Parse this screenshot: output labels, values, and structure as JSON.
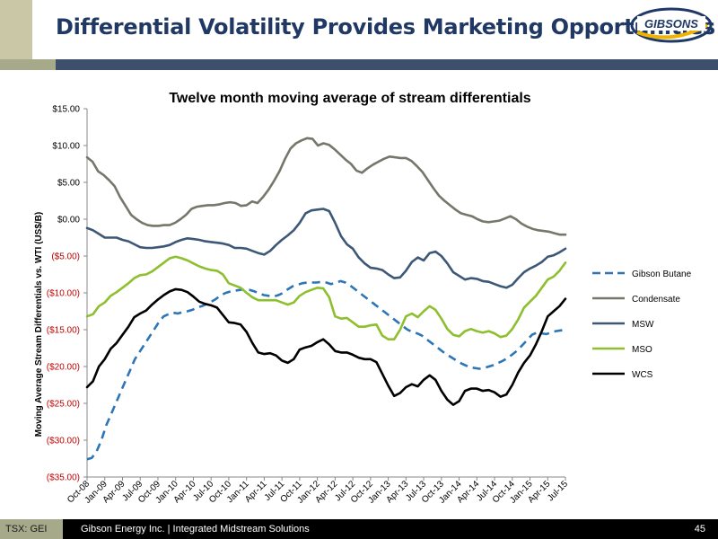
{
  "header": {
    "title": "Differential Volatility Provides Marketing Opportunities",
    "logo_text": "GIBSONS"
  },
  "footer": {
    "ticker": "TSX: GEI",
    "company": "Gibson Energy Inc.   |   Integrated Midstream Solutions",
    "page": "45"
  },
  "chart_data": {
    "type": "line",
    "title": "Twelve month moving average of stream differentials",
    "ylabel": "Moving Average Stream Differentials vs. WTI  (US$/B)",
    "xlabel": "",
    "ylim": [
      -35,
      15
    ],
    "yticks": [
      15,
      10,
      5,
      0,
      -5,
      -10,
      -15,
      -20,
      -25,
      -30,
      -35
    ],
    "ytick_labels": [
      "$15.00",
      "$10.00",
      "$5.00",
      "$0.00",
      "($5.00)",
      "($10.00)",
      "($15.00)",
      "($20.00)",
      "($25.00)",
      "($30.00)",
      "($35.00)"
    ],
    "xtick_labels": [
      "Oct-08",
      "Jan-09",
      "Apr-09",
      "Jul-09",
      "Oct-09",
      "Jan-10",
      "Apr-10",
      "Jul-10",
      "Oct-10",
      "Jan-11",
      "Apr-11",
      "Jul-11",
      "Oct-11",
      "Jan-12",
      "Apr-12",
      "Jul-12",
      "Oct-12",
      "Jan-13",
      "Apr-13",
      "Jul-13",
      "Oct-13",
      "Jan-14",
      "Apr-14",
      "Jul-14",
      "Oct-14",
      "Jan-15",
      "Apr-15",
      "Jul-15"
    ],
    "x_start": "Oct-08",
    "x_end": "Jul-15",
    "grid": false,
    "legend_position": "right",
    "series": [
      {
        "name": "Gibson Butane",
        "color": "#2e75b6",
        "dash": true,
        "values": [
          -32.6,
          -32.4,
          -31.5,
          -30,
          -28,
          -26.5,
          -25,
          -23.5,
          -22,
          -20.5,
          -19,
          -18,
          -17,
          -16,
          -15,
          -14,
          -13.2,
          -12.9,
          -12.7,
          -12.8,
          -12.6,
          -12.5,
          -12.3,
          -12,
          -11.8,
          -11.5,
          -11.2,
          -10.8,
          -10.3,
          -10,
          -9.8,
          -9.7,
          -9.6,
          -9.5,
          -9.6,
          -9.8,
          -10.1,
          -10.3,
          -10.4,
          -10.5,
          -10.3,
          -10,
          -9.5,
          -9.1,
          -8.9,
          -8.7,
          -8.6,
          -8.6,
          -8.6,
          -8.5,
          -8.6,
          -8.8,
          -8.6,
          -8.4,
          -8.6,
          -9,
          -9.5,
          -10,
          -10.5,
          -11,
          -11.5,
          -12,
          -12.5,
          -13,
          -13.5,
          -14,
          -14.5,
          -15,
          -15.3,
          -15.5,
          -15.8,
          -16.3,
          -16.8,
          -17.3,
          -17.8,
          -18.3,
          -18.7,
          -19.1,
          -19.5,
          -19.8,
          -20.1,
          -20.2,
          -20.3,
          -20.2,
          -20,
          -19.8,
          -19.5,
          -19.2,
          -18.8,
          -18.3,
          -17.8,
          -17.1,
          -16.4,
          -15.7,
          -15.4,
          -15.5,
          -15.6,
          -15.4,
          -15.2,
          -15.1,
          -15
        ]
      },
      {
        "name": "Condensate",
        "color": "#76766a",
        "dash": false,
        "values": [
          8.4,
          7.8,
          6.5,
          6,
          5.3,
          4.5,
          3,
          1.8,
          0.6,
          0,
          -0.5,
          -0.8,
          -0.9,
          -0.9,
          -0.8,
          -0.8,
          -0.5,
          0,
          0.6,
          1.4,
          1.7,
          1.8,
          1.9,
          1.9,
          2,
          2.2,
          2.3,
          2.2,
          1.8,
          1.9,
          2.4,
          2.2,
          3,
          4,
          5.2,
          6.5,
          8.2,
          9.6,
          10.3,
          10.7,
          11,
          10.9,
          10,
          10.3,
          10.1,
          9.5,
          8.8,
          8.1,
          7.5,
          6.6,
          6.3,
          6.9,
          7.4,
          7.8,
          8.2,
          8.5,
          8.4,
          8.3,
          8.3,
          7.9,
          7.2,
          6.4,
          5.3,
          4.2,
          3.2,
          2.5,
          1.9,
          1.3,
          0.8,
          0.6,
          0.4,
          0,
          -0.3,
          -0.4,
          -0.3,
          -0.2,
          0.1,
          0.4,
          0,
          -0.6,
          -1,
          -1.3,
          -1.5,
          -1.6,
          -1.7,
          -1.9,
          -2.1,
          -2.1
        ]
      },
      {
        "name": "MSW",
        "color": "#3d5876",
        "dash": false,
        "values": [
          -1.2,
          -1.5,
          -2,
          -2.5,
          -2.5,
          -2.5,
          -2.8,
          -3,
          -3.4,
          -3.8,
          -3.9,
          -3.9,
          -3.8,
          -3.7,
          -3.5,
          -3.1,
          -2.8,
          -2.6,
          -2.7,
          -2.8,
          -3,
          -3.1,
          -3.2,
          -3.3,
          -3.5,
          -3.9,
          -3.9,
          -4,
          -4.3,
          -4.6,
          -4.8,
          -4.3,
          -3.5,
          -2.8,
          -2.2,
          -1.5,
          -0.5,
          0.8,
          1.2,
          1.3,
          1.4,
          1.1,
          -0.5,
          -2.3,
          -3.4,
          -4,
          -5.2,
          -6,
          -6.6,
          -6.7,
          -6.9,
          -7.5,
          -8,
          -7.9,
          -7,
          -5.8,
          -5.2,
          -5.6,
          -4.6,
          -4.4,
          -5,
          -6,
          -7.2,
          -7.7,
          -8.2,
          -8,
          -8.1,
          -8.4,
          -8.5,
          -8.8,
          -9.1,
          -9.3,
          -8.9,
          -8,
          -7.2,
          -6.7,
          -6.3,
          -5.8,
          -5.1,
          -4.9,
          -4.5,
          -4
        ]
      },
      {
        "name": "MSO",
        "color": "#8dbf2e",
        "dash": false,
        "values": [
          -13.2,
          -12.9,
          -11.8,
          -11.3,
          -10.4,
          -9.9,
          -9.3,
          -8.7,
          -8,
          -7.6,
          -7.5,
          -7.1,
          -6.5,
          -5.9,
          -5.3,
          -5.1,
          -5.3,
          -5.6,
          -6,
          -6.4,
          -6.7,
          -6.9,
          -7,
          -7.5,
          -8.7,
          -9,
          -9.3,
          -10,
          -10.6,
          -11,
          -11,
          -11,
          -11,
          -11.3,
          -11.6,
          -11.3,
          -10.4,
          -9.9,
          -9.6,
          -9.3,
          -9.4,
          -10.6,
          -13.2,
          -13.5,
          -13.4,
          -14,
          -14.6,
          -14.6,
          -14.4,
          -14.3,
          -15.8,
          -16.3,
          -16.3,
          -15,
          -13.2,
          -12.8,
          -13.3,
          -12.5,
          -11.8,
          -12.3,
          -13.5,
          -14.9,
          -15.7,
          -15.9,
          -15.2,
          -14.9,
          -15.2,
          -15.4,
          -15.2,
          -15.5,
          -16,
          -15.8,
          -14.9,
          -13.6,
          -12,
          -11.2,
          -10.4,
          -9.3,
          -8.2,
          -7.8,
          -7,
          -5.9
        ]
      },
      {
        "name": "WCS",
        "color": "#000000",
        "dash": false,
        "values": [
          -22.8,
          -22,
          -20,
          -19,
          -17.6,
          -16.8,
          -15.7,
          -14.6,
          -13.3,
          -12.8,
          -12.4,
          -11.6,
          -10.9,
          -10.3,
          -9.8,
          -9.5,
          -9.6,
          -9.9,
          -10.5,
          -11.2,
          -11.5,
          -11.7,
          -12,
          -13,
          -14,
          -14.1,
          -14.3,
          -15.3,
          -16.8,
          -18.1,
          -18.3,
          -18.2,
          -18.5,
          -19.2,
          -19.5,
          -19,
          -17.7,
          -17.4,
          -17.2,
          -16.7,
          -16.3,
          -17,
          -17.9,
          -18.1,
          -18.1,
          -18.4,
          -18.8,
          -19,
          -19,
          -19.4,
          -21,
          -22.6,
          -24,
          -23.6,
          -22.8,
          -22.4,
          -22.7,
          -21.8,
          -21.2,
          -21.8,
          -23.3,
          -24.5,
          -25.2,
          -24.7,
          -23.3,
          -23,
          -23,
          -23.3,
          -23.2,
          -23.5,
          -24.1,
          -23.8,
          -22.5,
          -20.8,
          -19.5,
          -18.5,
          -17,
          -15.2,
          -13.2,
          -12.5,
          -11.8,
          -10.8
        ]
      }
    ]
  }
}
